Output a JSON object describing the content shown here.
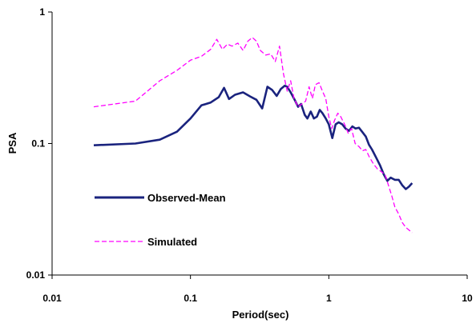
{
  "chart_data": {
    "type": "line",
    "xlabel": "Period(sec)",
    "ylabel": "PSA",
    "x_scale": "log",
    "y_scale": "log",
    "xlim": [
      0.01,
      10
    ],
    "ylim": [
      0.01,
      1
    ],
    "x_ticks": [
      "0.01",
      "0.1",
      "1",
      "10"
    ],
    "y_ticks": [
      "0.01",
      "0.1",
      "1"
    ],
    "grid": false,
    "legend_position": "inside-left",
    "series": [
      {
        "name": "Observed-Mean",
        "color": "#1a237e",
        "style": "solid",
        "x": [
          0.02,
          0.04,
          0.06,
          0.08,
          0.1,
          0.12,
          0.14,
          0.16,
          0.175,
          0.19,
          0.21,
          0.24,
          0.27,
          0.3,
          0.33,
          0.36,
          0.39,
          0.42,
          0.45,
          0.48,
          0.5,
          0.53,
          0.56,
          0.6,
          0.63,
          0.67,
          0.7,
          0.74,
          0.78,
          0.82,
          0.86,
          0.9,
          0.95,
          1.0,
          1.06,
          1.12,
          1.18,
          1.25,
          1.32,
          1.4,
          1.48,
          1.56,
          1.65,
          1.75,
          1.85,
          1.95,
          2.05,
          2.2,
          2.35,
          2.5,
          2.65,
          2.8,
          3.0,
          3.2,
          3.4,
          3.6,
          3.8,
          4.0
        ],
        "values": [
          0.097,
          0.1,
          0.107,
          0.123,
          0.155,
          0.195,
          0.205,
          0.225,
          0.265,
          0.218,
          0.235,
          0.245,
          0.228,
          0.215,
          0.185,
          0.27,
          0.255,
          0.23,
          0.26,
          0.275,
          0.27,
          0.245,
          0.22,
          0.19,
          0.2,
          0.165,
          0.155,
          0.175,
          0.155,
          0.16,
          0.18,
          0.17,
          0.155,
          0.14,
          0.11,
          0.14,
          0.145,
          0.14,
          0.13,
          0.125,
          0.135,
          0.13,
          0.132,
          0.122,
          0.113,
          0.098,
          0.09,
          0.078,
          0.068,
          0.058,
          0.052,
          0.055,
          0.053,
          0.053,
          0.048,
          0.045,
          0.047,
          0.05
        ]
      },
      {
        "name": "Simulated",
        "color": "#ff00ff",
        "style": "dashed",
        "x": [
          0.02,
          0.04,
          0.06,
          0.08,
          0.1,
          0.12,
          0.14,
          0.155,
          0.17,
          0.185,
          0.2,
          0.22,
          0.24,
          0.26,
          0.28,
          0.3,
          0.32,
          0.35,
          0.38,
          0.41,
          0.44,
          0.47,
          0.5,
          0.53,
          0.56,
          0.6,
          0.64,
          0.68,
          0.72,
          0.76,
          0.8,
          0.85,
          0.9,
          0.95,
          1.0,
          1.05,
          1.1,
          1.16,
          1.22,
          1.3,
          1.38,
          1.46,
          1.55,
          1.65,
          1.75,
          1.85,
          1.95,
          2.1,
          2.25,
          2.4,
          2.55,
          2.7,
          2.85,
          3.0,
          3.2,
          3.4,
          3.6,
          3.8,
          4.0
        ],
        "values": [
          0.19,
          0.21,
          0.3,
          0.36,
          0.43,
          0.46,
          0.52,
          0.62,
          0.52,
          0.57,
          0.55,
          0.58,
          0.51,
          0.6,
          0.64,
          0.6,
          0.51,
          0.47,
          0.48,
          0.42,
          0.55,
          0.34,
          0.25,
          0.3,
          0.22,
          0.19,
          0.2,
          0.21,
          0.27,
          0.22,
          0.28,
          0.29,
          0.25,
          0.22,
          0.16,
          0.13,
          0.15,
          0.17,
          0.16,
          0.14,
          0.12,
          0.13,
          0.1,
          0.095,
          0.088,
          0.09,
          0.08,
          0.07,
          0.064,
          0.061,
          0.058,
          0.048,
          0.04,
          0.033,
          0.029,
          0.025,
          0.023,
          0.022,
          0.021
        ]
      }
    ]
  }
}
